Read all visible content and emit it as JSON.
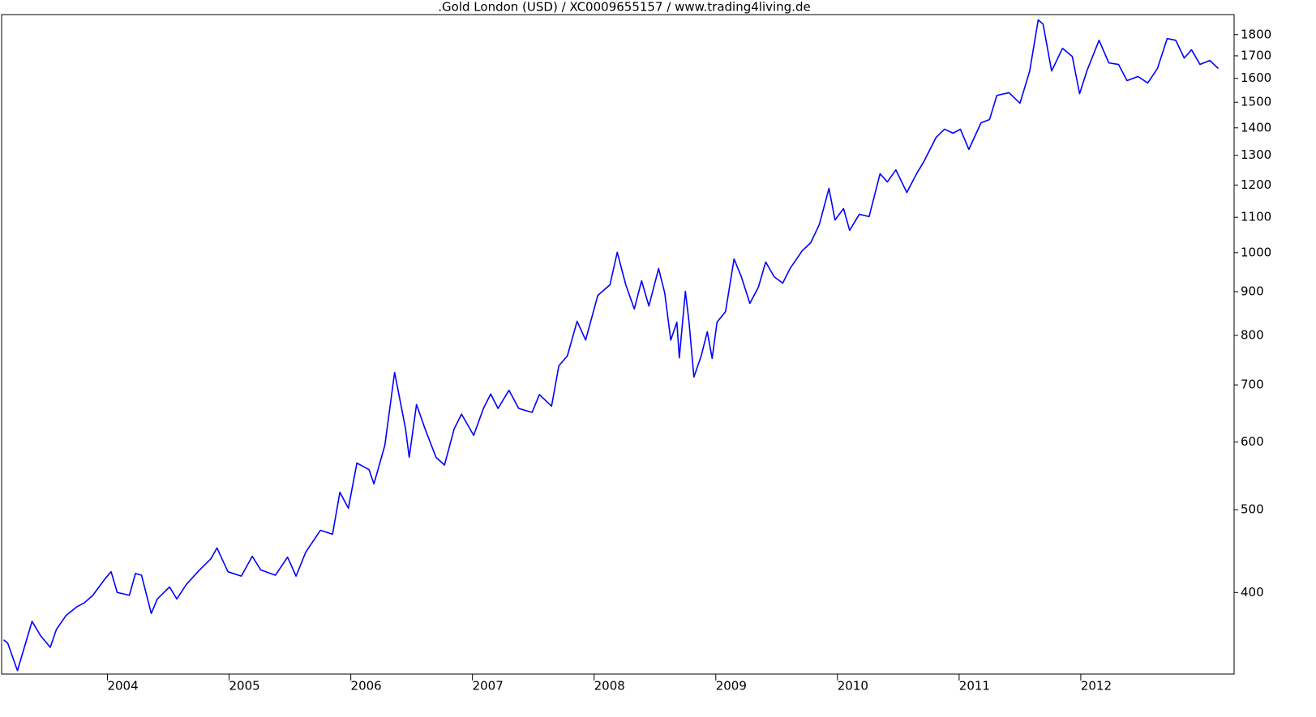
{
  "chart_data": {
    "type": "line",
    "title": ".Gold London (USD) / XC0009655157 / www.trading4living.de",
    "x": [
      2003.147,
      2003.18,
      2003.26,
      2003.38,
      2003.45,
      2003.53,
      2003.58,
      2003.66,
      2003.75,
      2003.81,
      2003.88,
      2003.98,
      2004.03,
      2004.08,
      2004.18,
      2004.23,
      2004.28,
      2004.36,
      2004.41,
      2004.51,
      2004.57,
      2004.65,
      2004.75,
      2004.85,
      2004.9,
      2004.99,
      2005.1,
      2005.19,
      2005.26,
      2005.38,
      2005.48,
      2005.55,
      2005.63,
      2005.75,
      2005.85,
      2005.91,
      2005.98,
      2006.05,
      2006.15,
      2006.19,
      2006.28,
      2006.36,
      2006.45,
      2006.48,
      2006.54,
      2006.61,
      2006.7,
      2006.77,
      2006.85,
      2006.91,
      2007.01,
      2007.09,
      2007.15,
      2007.21,
      2007.3,
      2007.38,
      2007.49,
      2007.55,
      2007.65,
      2007.71,
      2007.78,
      2007.86,
      2007.93,
      2008.03,
      2008.13,
      2008.19,
      2008.26,
      2008.33,
      2008.39,
      2008.45,
      2008.53,
      2008.58,
      2008.63,
      2008.68,
      2008.7,
      2008.75,
      2008.78,
      2008.82,
      2008.88,
      2008.93,
      2008.97,
      2009.01,
      2009.08,
      2009.15,
      2009.21,
      2009.28,
      2009.35,
      2009.41,
      2009.48,
      2009.55,
      2009.61,
      2009.71,
      2009.78,
      2009.85,
      2009.93,
      2009.98,
      2010.05,
      2010.1,
      2010.18,
      2010.26,
      2010.35,
      2010.41,
      2010.48,
      2010.57,
      2010.65,
      2010.71,
      2010.81,
      2010.88,
      2010.95,
      2011.01,
      2011.08,
      2011.18,
      2011.25,
      2011.31,
      2011.41,
      2011.5,
      2011.58,
      2011.65,
      2011.69,
      2011.76,
      2011.85,
      2011.93,
      2011.99,
      2012.05,
      2012.15,
      2012.23,
      2012.31,
      2012.38,
      2012.47,
      2012.55,
      2012.63,
      2012.71,
      2012.78,
      2012.85,
      2012.91,
      2012.98,
      2013.06,
      2013.13
    ],
    "values": [
      352,
      349,
      324,
      370,
      356,
      345,
      362,
      376,
      385,
      389,
      397,
      415,
      423,
      400,
      397,
      421,
      419,
      378,
      393,
      406,
      393,
      409,
      424,
      438,
      451,
      423,
      418,
      441,
      425,
      419,
      440,
      418,
      446,
      473,
      468,
      524,
      502,
      567,
      557,
      536,
      595,
      724,
      622,
      576,
      664,
      622,
      576,
      564,
      622,
      647,
      611,
      657,
      683,
      657,
      690,
      657,
      650,
      682,
      661,
      737,
      757,
      831,
      790,
      891,
      917,
      1001,
      917,
      859,
      927,
      866,
      958,
      897,
      790,
      829,
      753,
      901,
      829,
      715,
      757,
      808,
      752,
      829,
      853,
      983,
      937,
      872,
      911,
      975,
      937,
      921,
      958,
      1005,
      1027,
      1078,
      1189,
      1092,
      1126,
      1062,
      1109,
      1102,
      1237,
      1210,
      1250,
      1176,
      1237,
      1278,
      1364,
      1395,
      1380,
      1395,
      1321,
      1419,
      1432,
      1528,
      1539,
      1496,
      1632,
      1873,
      1852,
      1632,
      1735,
      1697,
      1535,
      1632,
      1773,
      1668,
      1661,
      1590,
      1608,
      1580,
      1643,
      1781,
      1773,
      1690,
      1728,
      1661,
      1679,
      1643
    ],
    "color": "#0000ff",
    "xlim": [
      2003.13,
      2013.26
    ],
    "xticks": [
      2004,
      2005,
      2006,
      2007,
      2008,
      2009,
      2010,
      2011,
      2012
    ],
    "ylim": [
      321,
      1900
    ],
    "yticks": [
      400,
      500,
      600,
      700,
      800,
      900,
      1000,
      1100,
      1200,
      1300,
      1400,
      1500,
      1600,
      1700,
      1800
    ],
    "log_y": true,
    "grid": false
  }
}
